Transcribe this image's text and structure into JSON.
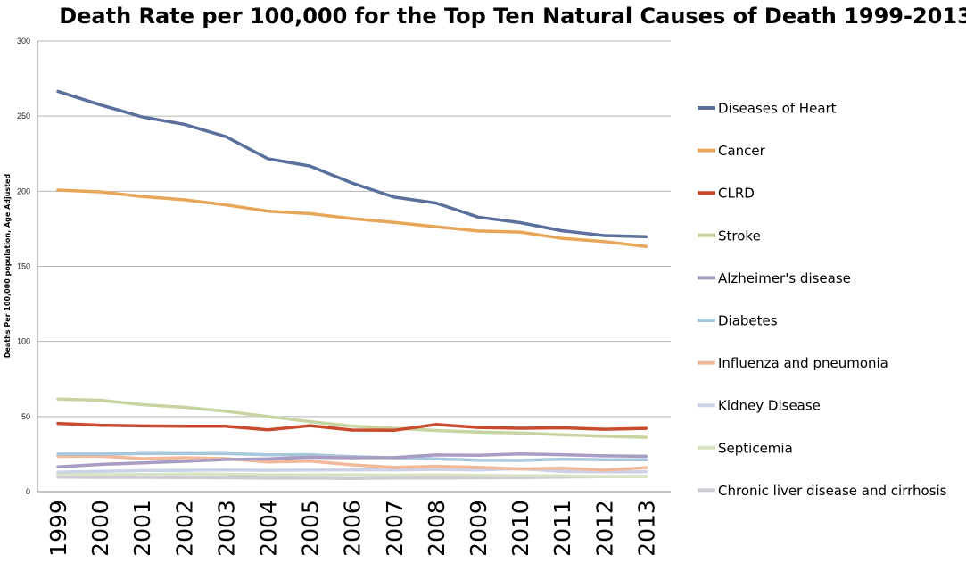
{
  "chart_data": {
    "type": "line",
    "title": "Death Rate per 100,000 for the Top Ten Natural Causes of Death 1999-2013",
    "ylabel": "Deaths Per 100,000 population, Age Adjusted",
    "xlabel": "",
    "ylim": [
      0,
      300
    ],
    "yticks": [
      0,
      50,
      100,
      150,
      200,
      250,
      300
    ],
    "grid": true,
    "legend_position": "right",
    "x": [
      "1999",
      "2000",
      "2001",
      "2002",
      "2003",
      "2004",
      "2005",
      "2006",
      "2007",
      "2008",
      "2009",
      "2010",
      "2011",
      "2012",
      "2013"
    ],
    "series": [
      {
        "name": "Diseases of Heart",
        "color": "#5a6f9c",
        "values": [
          266.5,
          257.6,
          249.5,
          244.6,
          236.3,
          221.6,
          216.8,
          205.5,
          196.1,
          192.1,
          182.8,
          179.1,
          173.7,
          170.5,
          169.8
        ]
      },
      {
        "name": "Cancer",
        "color": "#e8a65a",
        "values": [
          200.8,
          199.6,
          196.5,
          194.3,
          190.9,
          186.7,
          185.1,
          181.8,
          179.3,
          176.4,
          173.5,
          172.8,
          168.6,
          166.5,
          163.2
        ]
      },
      {
        "name": "CLRD",
        "color": "#c94a2c",
        "values": [
          45.4,
          44.2,
          43.7,
          43.5,
          43.5,
          41.1,
          43.9,
          41.0,
          40.8,
          44.7,
          42.7,
          42.2,
          42.5,
          41.5,
          42.1
        ]
      },
      {
        "name": "Stroke",
        "color": "#c6d5a0",
        "values": [
          61.6,
          60.9,
          57.9,
          56.2,
          53.5,
          50.0,
          46.6,
          43.6,
          42.2,
          40.7,
          39.6,
          39.1,
          37.9,
          36.9,
          36.2
        ]
      },
      {
        "name": "Alzheimer's disease",
        "color": "#a99cc2",
        "values": [
          16.5,
          18.1,
          19.1,
          20.2,
          21.4,
          21.8,
          22.9,
          22.6,
          22.7,
          24.4,
          24.2,
          25.1,
          24.6,
          23.8,
          23.5
        ]
      },
      {
        "name": "Diabetes",
        "color": "#a7c8da",
        "values": [
          25.0,
          25.0,
          25.3,
          25.4,
          25.3,
          24.5,
          24.6,
          23.3,
          22.5,
          21.8,
          20.9,
          20.8,
          21.6,
          21.2,
          21.2
        ]
      },
      {
        "name": "Influenza and pneumonia",
        "color": "#f1b99a",
        "values": [
          23.5,
          23.7,
          22.0,
          22.6,
          22.0,
          19.8,
          20.3,
          17.8,
          16.2,
          16.9,
          16.2,
          15.1,
          15.7,
          14.4,
          15.9
        ]
      },
      {
        "name": "Kidney Disease",
        "color": "#ccd1e6",
        "values": [
          13.0,
          13.5,
          14.0,
          14.2,
          14.4,
          14.2,
          14.3,
          14.5,
          14.5,
          14.8,
          14.5,
          15.3,
          13.4,
          13.1,
          13.2
        ]
      },
      {
        "name": "Septicemia",
        "color": "#d7e3c2",
        "values": [
          11.3,
          11.3,
          11.4,
          11.7,
          11.6,
          11.2,
          11.2,
          11.2,
          11.0,
          11.1,
          10.9,
          10.6,
          10.5,
          10.1,
          10.0
        ]
      },
      {
        "name": "Chronic liver disease and cirrhosis",
        "color": "#cfcbd4",
        "values": [
          9.6,
          9.5,
          9.5,
          9.4,
          9.2,
          9.0,
          9.0,
          8.8,
          9.1,
          9.1,
          9.2,
          9.4,
          9.7,
          9.9,
          10.2
        ]
      }
    ]
  }
}
